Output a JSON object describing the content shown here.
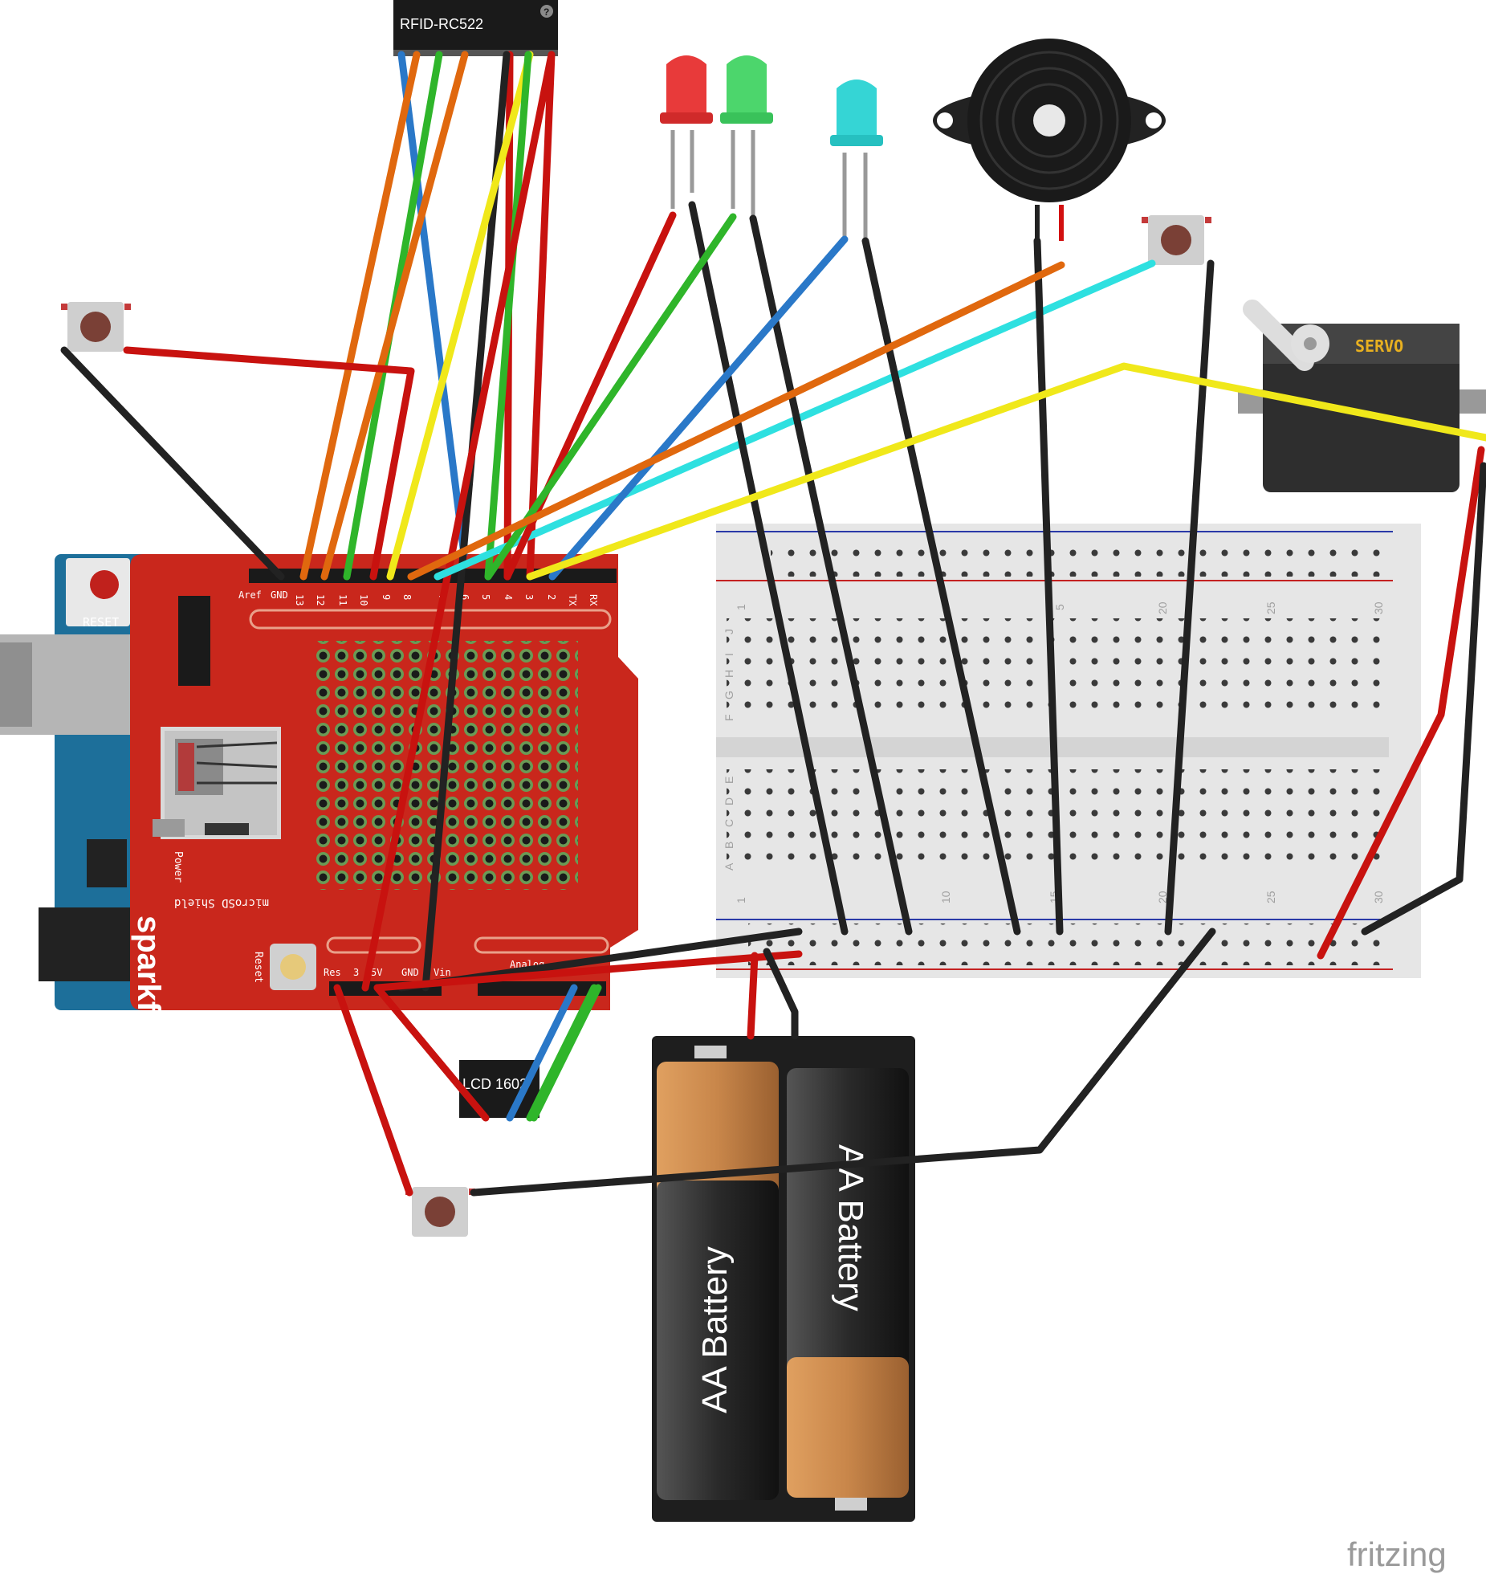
{
  "rfid": {
    "label": "RFID-RC522",
    "help": "?"
  },
  "arduino": {
    "reset_label": "RESET"
  },
  "shield": {
    "brand": "sparkfun.com",
    "name": "microSD Shield",
    "power_label": "Power",
    "reset_label": "Reset",
    "pin_labels_top": [
      "Aref",
      "GND",
      "13",
      "12",
      "11",
      "10",
      "9",
      "8",
      "7",
      "6",
      "5",
      "4",
      "3",
      "2",
      "TX",
      "RX"
    ],
    "pin_labels_bottom": [
      "Res",
      "3",
      "5V",
      "GND",
      "Vin"
    ],
    "analog_label": "Analog"
  },
  "lcd": {
    "label": "LCD 1602"
  },
  "servo": {
    "label": "SERVO"
  },
  "breadboard": {
    "top_numbers": [
      "1",
      "5",
      "20",
      "25",
      "30"
    ],
    "bottom_numbers": [
      "1",
      "10",
      "15",
      "20",
      "25",
      "30"
    ],
    "row_letters_top": [
      "J",
      "I",
      "H",
      "G",
      "F"
    ],
    "row_letters_bottom": [
      "E",
      "D",
      "C",
      "B",
      "A"
    ]
  },
  "battery": {
    "cell1": "AA Battery",
    "cell2": "AA Battery"
  },
  "watermark": "fritzing",
  "colors": {
    "shield_red": "#c9271c",
    "arduino_blue": "#1d6f9a",
    "wire_red": "#c8120f",
    "wire_black": "#222222",
    "wire_orange": "#e0680e",
    "wire_green": "#2fb52a",
    "wire_blue": "#2a78c8",
    "wire_yellow": "#f0e81a",
    "wire_cyan": "#2ee0e0"
  }
}
